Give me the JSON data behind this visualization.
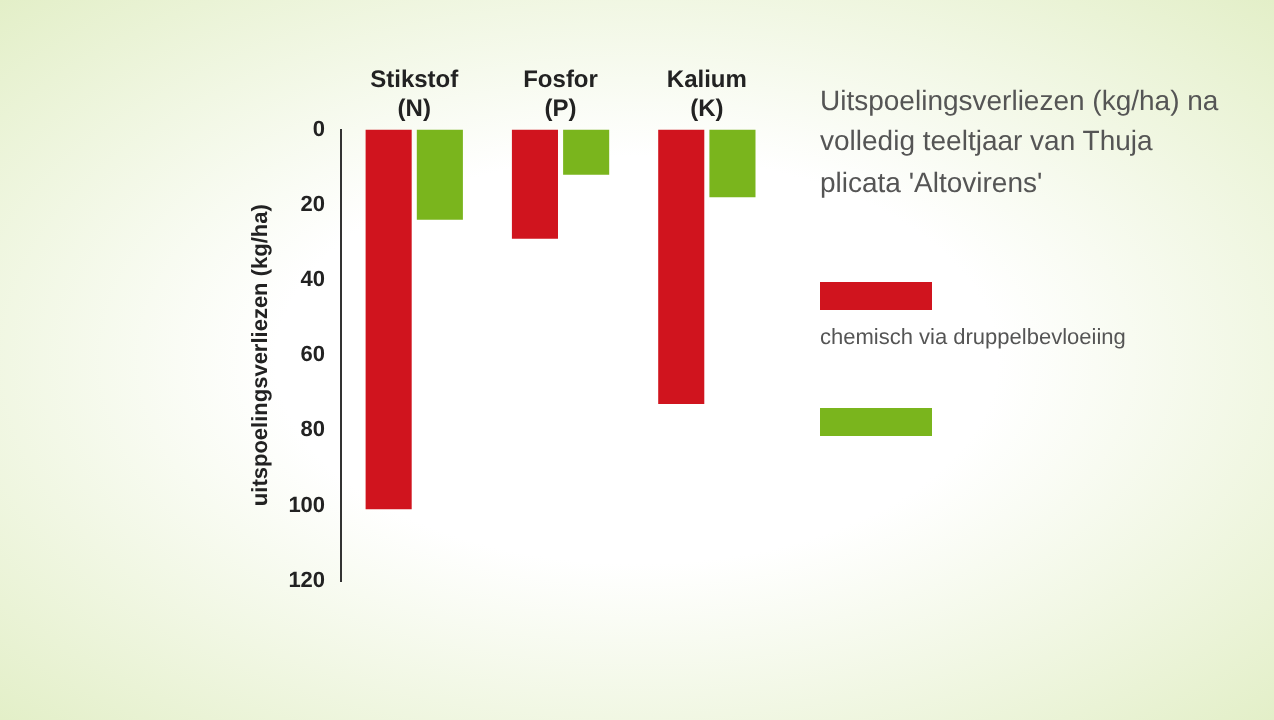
{
  "chart_data": {
    "type": "bar",
    "title": "Uitspoelingsverliezen (kg/ha) na volledig teeltjaar van Thuja plicata 'Altovirens'",
    "ylabel": "uitspoelingsverliezen (kg/ha)",
    "categories": [
      "Stikstof\n(N)",
      "Fosfor\n(P)",
      "Kalium\n(K)"
    ],
    "series": [
      {
        "name": "chemisch via druppelbevloeiing",
        "color": "#d0141e",
        "values": [
          101,
          29,
          73
        ]
      },
      {
        "color": "#7ab51d",
        "values": [
          24,
          12,
          18
        ]
      }
    ],
    "ylim": [
      120,
      0
    ],
    "yticks": [
      0,
      20,
      40,
      60,
      80,
      100,
      120
    ],
    "grid": false,
    "legend": "right"
  }
}
